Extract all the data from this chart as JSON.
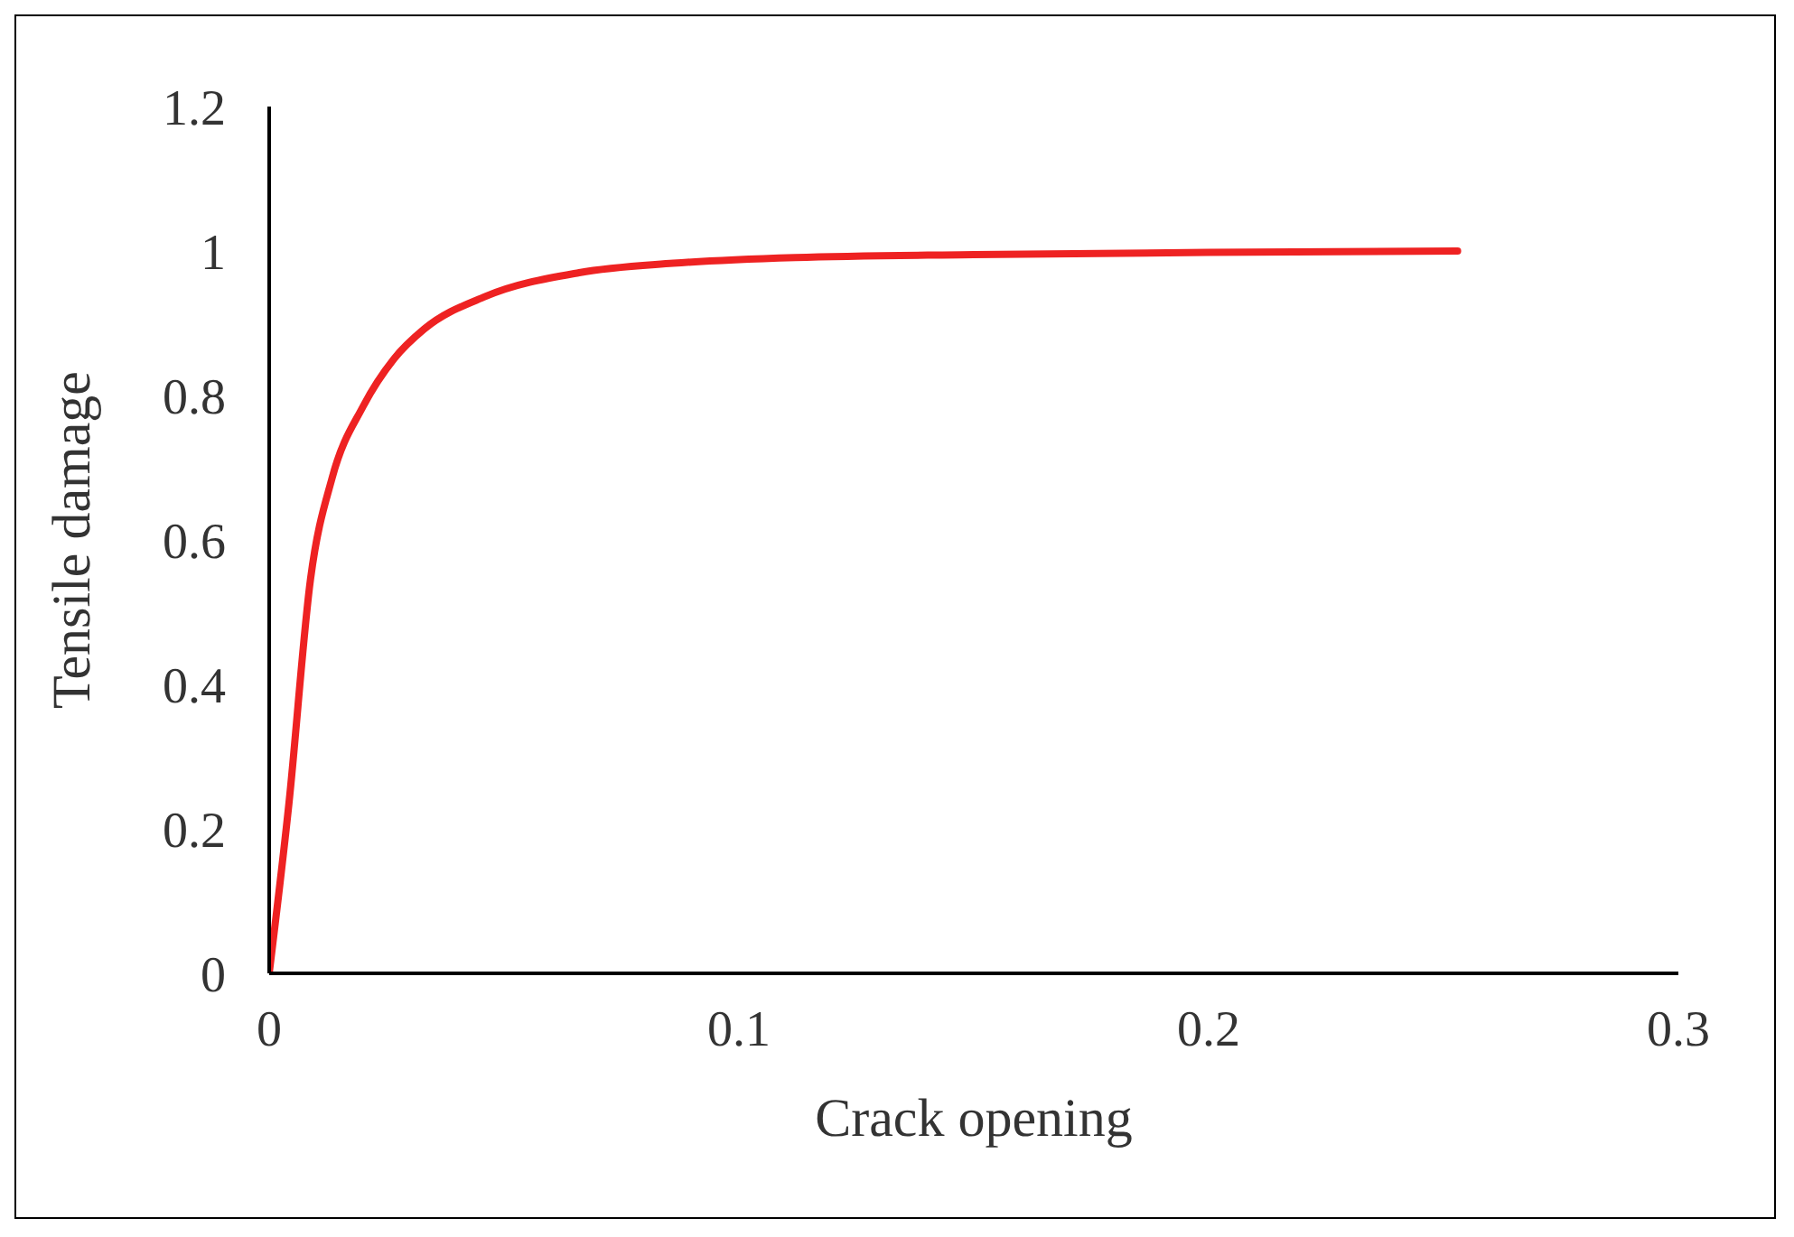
{
  "chart_data": {
    "type": "line",
    "xlabel": "Crack opening",
    "ylabel": "Tensile damage",
    "x": [
      0,
      0.0042,
      0.0088,
      0.0134,
      0.02,
      0.0266,
      0.033,
      0.046,
      0.066,
      0.086,
      0.112,
      0.15,
      0.2,
      0.253
    ],
    "series": [
      {
        "color": "#ee2222",
        "values": [
          0,
          0.235,
          0.546,
          0.686,
          0.785,
          0.851,
          0.892,
          0.937,
          0.97,
          0.983,
          0.991,
          0.995,
          0.998,
          1
        ]
      }
    ],
    "xlim": [
      0,
      0.3
    ],
    "xticks": [
      0,
      0.1,
      0.2,
      0.3
    ],
    "ylim": [
      0,
      1.2
    ],
    "yticks": [
      0,
      0.2,
      0.4,
      0.6,
      0.8,
      1,
      1.2
    ],
    "grid": false,
    "legend": false,
    "marker": "none",
    "line_style": "solid"
  }
}
